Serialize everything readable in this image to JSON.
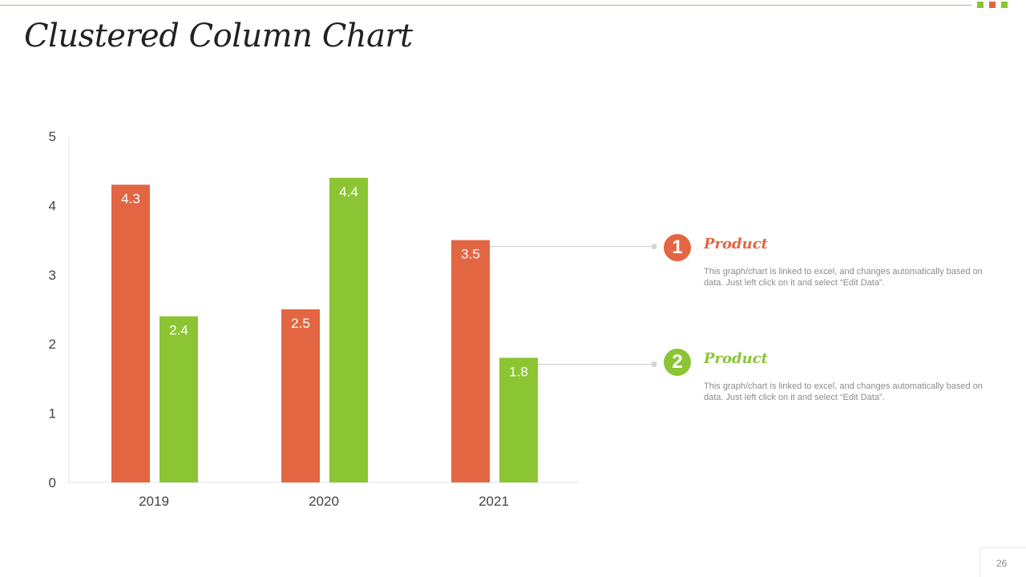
{
  "title": "Clustered Column Chart",
  "colors": {
    "series1": "#e36643",
    "series2": "#8bc534",
    "accent_square_3": "#e36643"
  },
  "chart_data": {
    "type": "bar",
    "categories": [
      "2019",
      "2020",
      "2021"
    ],
    "series": [
      {
        "values": [
          4.3,
          2.5,
          3.5
        ]
      },
      {
        "values": [
          2.4,
          4.4,
          1.8
        ]
      }
    ],
    "ylim": [
      0,
      5
    ],
    "yticks": [
      0,
      1,
      2,
      3,
      4,
      5
    ],
    "data_labels": true,
    "grid": false
  },
  "callouts": [
    {
      "number": "1",
      "title": "Product",
      "description": "This graph/chart is linked to excel, and changes automatically based on data. Just left click on it and select “Edit Data”."
    },
    {
      "number": "2",
      "title": "Product",
      "description": "This graph/chart is linked to excel, and changes automatically based on data. Just left click on it and select “Edit Data”."
    }
  ],
  "page_number": "26"
}
